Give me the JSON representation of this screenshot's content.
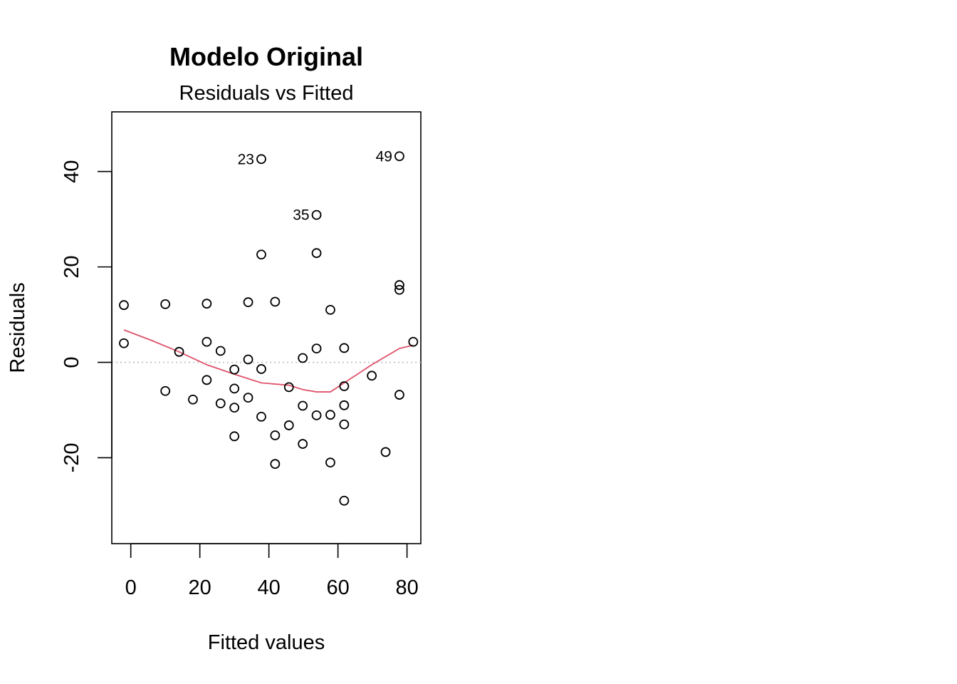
{
  "chart_data": {
    "type": "scatter",
    "title": "Modelo Original",
    "subtitle": "Residuals vs Fitted",
    "xlabel": "Fitted values",
    "ylabel": "Residuals",
    "xlim": [
      -5.5,
      84
    ],
    "ylim": [
      -38,
      52.5
    ],
    "x_ticks": [
      0,
      20,
      40,
      60,
      80
    ],
    "y_ticks": [
      -20,
      0,
      20,
      40
    ],
    "x_tick_labels": [
      "0",
      "20",
      "40",
      "60",
      "80"
    ],
    "y_tick_labels": [
      "-20",
      "0",
      "20",
      "40"
    ],
    "reference_line": {
      "y": 0,
      "style": "dotted",
      "color": "#bebebe"
    },
    "colors": {
      "points": "#000000",
      "smooth": "#df536b",
      "axis": "#000000"
    },
    "points": [
      {
        "x": -2,
        "y": 12
      },
      {
        "x": -2,
        "y": 4
      },
      {
        "x": 10,
        "y": 12.2
      },
      {
        "x": 10,
        "y": -6
      },
      {
        "x": 14,
        "y": 2.2
      },
      {
        "x": 18,
        "y": -7.8
      },
      {
        "x": 22,
        "y": 12.3
      },
      {
        "x": 22,
        "y": 4.3
      },
      {
        "x": 22,
        "y": -3.7
      },
      {
        "x": 26,
        "y": 2.4
      },
      {
        "x": 26,
        "y": -8.6
      },
      {
        "x": 30,
        "y": -1.5
      },
      {
        "x": 30,
        "y": -5.5
      },
      {
        "x": 30,
        "y": -9.5
      },
      {
        "x": 30,
        "y": -15.5
      },
      {
        "x": 34,
        "y": 12.6
      },
      {
        "x": 34,
        "y": 0.6
      },
      {
        "x": 34,
        "y": -7.4
      },
      {
        "x": 37.8,
        "y": 42.6,
        "label": "23"
      },
      {
        "x": 37.8,
        "y": 22.6
      },
      {
        "x": 37.8,
        "y": -1.4
      },
      {
        "x": 37.8,
        "y": -11.4
      },
      {
        "x": 41.8,
        "y": 12.7
      },
      {
        "x": 41.8,
        "y": -15.3
      },
      {
        "x": 41.8,
        "y": -21.3
      },
      {
        "x": 45.8,
        "y": -5.2
      },
      {
        "x": 45.8,
        "y": -13.2
      },
      {
        "x": 49.8,
        "y": 0.9
      },
      {
        "x": 49.8,
        "y": -9.1
      },
      {
        "x": 49.8,
        "y": -17.1
      },
      {
        "x": 53.8,
        "y": 30.9,
        "label": "35"
      },
      {
        "x": 53.8,
        "y": 22.9
      },
      {
        "x": 53.8,
        "y": 2.9
      },
      {
        "x": 53.8,
        "y": -11.1
      },
      {
        "x": 57.8,
        "y": 11
      },
      {
        "x": 57.8,
        "y": -11
      },
      {
        "x": 57.8,
        "y": -21
      },
      {
        "x": 61.8,
        "y": 3
      },
      {
        "x": 61.8,
        "y": -5
      },
      {
        "x": 61.8,
        "y": -9
      },
      {
        "x": 61.8,
        "y": -13
      },
      {
        "x": 61.8,
        "y": -29
      },
      {
        "x": 69.8,
        "y": -2.8
      },
      {
        "x": 73.8,
        "y": -18.8
      },
      {
        "x": 77.8,
        "y": 43.2,
        "label": "49"
      },
      {
        "x": 77.8,
        "y": 16.2
      },
      {
        "x": 77.8,
        "y": 15.2
      },
      {
        "x": 77.8,
        "y": -6.8
      },
      {
        "x": 81.8,
        "y": 4.3
      }
    ],
    "smooth_line": [
      {
        "x": -2,
        "y": 6.8
      },
      {
        "x": 6,
        "y": 4.6
      },
      {
        "x": 14,
        "y": 2.2
      },
      {
        "x": 22,
        "y": -0.5
      },
      {
        "x": 30,
        "y": -2.5
      },
      {
        "x": 37.8,
        "y": -4.3
      },
      {
        "x": 45.8,
        "y": -4.8
      },
      {
        "x": 49.8,
        "y": -5.7
      },
      {
        "x": 53.8,
        "y": -6.2
      },
      {
        "x": 57.8,
        "y": -6.2
      },
      {
        "x": 61.8,
        "y": -4.3
      },
      {
        "x": 69.8,
        "y": -0.5
      },
      {
        "x": 77.8,
        "y": 2.9
      },
      {
        "x": 81.8,
        "y": 3.6
      }
    ]
  }
}
